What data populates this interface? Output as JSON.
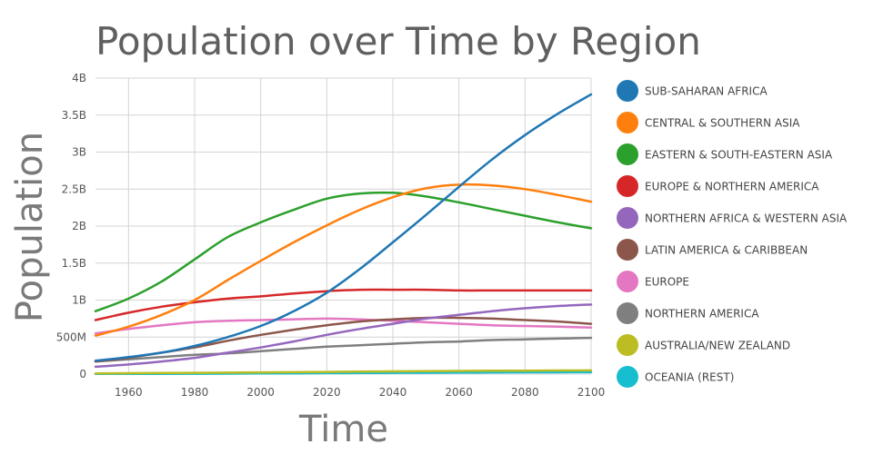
{
  "chart_data": {
    "type": "line",
    "title": "Population over Time by Region",
    "xlabel": "Time",
    "ylabel": "Population",
    "xlim": [
      1950,
      2100
    ],
    "ylim": [
      0,
      4000000000
    ],
    "grid": true,
    "legend_position": "right",
    "x_ticks": [
      {
        "value": 1960,
        "label": "1960"
      },
      {
        "value": 1980,
        "label": "1980"
      },
      {
        "value": 2000,
        "label": "2000"
      },
      {
        "value": 2020,
        "label": "2020"
      },
      {
        "value": 2040,
        "label": "2040"
      },
      {
        "value": 2060,
        "label": "2060"
      },
      {
        "value": 2080,
        "label": "2080"
      },
      {
        "value": 2100,
        "label": "2100"
      }
    ],
    "y_ticks": [
      {
        "value": 0,
        "label": "0"
      },
      {
        "value": 500000000,
        "label": "500M"
      },
      {
        "value": 1000000000,
        "label": "1B"
      },
      {
        "value": 1500000000,
        "label": "1.5B"
      },
      {
        "value": 2000000000,
        "label": "2B"
      },
      {
        "value": 2500000000,
        "label": "2.5B"
      },
      {
        "value": 3000000000,
        "label": "3B"
      },
      {
        "value": 3500000000,
        "label": "3.5B"
      },
      {
        "value": 4000000000,
        "label": "4B"
      }
    ],
    "x": [
      1950,
      1960,
      1970,
      1980,
      1990,
      2000,
      2010,
      2020,
      2030,
      2040,
      2050,
      2060,
      2070,
      2080,
      2090,
      2100
    ],
    "series": [
      {
        "name": "SUB-SAHARAN AFRICA",
        "color": "#1f77b4",
        "values": [
          180000000,
          230000000,
          290000000,
          380000000,
          500000000,
          650000000,
          850000000,
          1100000000,
          1420000000,
          1780000000,
          2150000000,
          2530000000,
          2900000000,
          3230000000,
          3520000000,
          3780000000
        ]
      },
      {
        "name": "CENTRAL & SOUTHERN ASIA",
        "color": "#ff7f0e",
        "values": [
          520000000,
          640000000,
          800000000,
          1000000000,
          1270000000,
          1530000000,
          1780000000,
          2010000000,
          2220000000,
          2390000000,
          2510000000,
          2560000000,
          2550000000,
          2500000000,
          2420000000,
          2330000000
        ]
      },
      {
        "name": "EASTERN & SOUTH-EASTERN ASIA",
        "color": "#2ca02c",
        "values": [
          850000000,
          1020000000,
          1250000000,
          1550000000,
          1850000000,
          2050000000,
          2220000000,
          2370000000,
          2440000000,
          2450000000,
          2400000000,
          2320000000,
          2230000000,
          2140000000,
          2050000000,
          1970000000
        ]
      },
      {
        "name": "EUROPE & NORTHERN AMERICA",
        "color": "#d62728",
        "values": [
          730000000,
          830000000,
          910000000,
          970000000,
          1020000000,
          1050000000,
          1090000000,
          1120000000,
          1140000000,
          1140000000,
          1140000000,
          1130000000,
          1130000000,
          1130000000,
          1130000000,
          1130000000
        ]
      },
      {
        "name": "NORTHERN AFRICA & WESTERN ASIA",
        "color": "#9467bd",
        "values": [
          100000000,
          130000000,
          170000000,
          220000000,
          290000000,
          360000000,
          440000000,
          530000000,
          610000000,
          680000000,
          750000000,
          800000000,
          850000000,
          890000000,
          920000000,
          940000000
        ]
      },
      {
        "name": "LATIN AMERICA & CARIBBEAN",
        "color": "#8c564b",
        "values": [
          170000000,
          220000000,
          290000000,
          360000000,
          450000000,
          530000000,
          600000000,
          660000000,
          710000000,
          740000000,
          760000000,
          760000000,
          750000000,
          730000000,
          710000000,
          680000000
        ]
      },
      {
        "name": "EUROPE",
        "color": "#e377c2",
        "values": [
          550000000,
          610000000,
          660000000,
          700000000,
          720000000,
          730000000,
          740000000,
          750000000,
          740000000,
          720000000,
          700000000,
          680000000,
          660000000,
          650000000,
          640000000,
          630000000
        ]
      },
      {
        "name": "NORTHERN AMERICA",
        "color": "#7f7f7f",
        "values": [
          170000000,
          200000000,
          230000000,
          260000000,
          280000000,
          310000000,
          340000000,
          370000000,
          390000000,
          410000000,
          430000000,
          440000000,
          460000000,
          470000000,
          480000000,
          490000000
        ]
      },
      {
        "name": "AUSTRALIA/NEW ZEALAND",
        "color": "#bcbd22",
        "values": [
          10000000,
          12000000,
          15000000,
          17000000,
          20000000,
          23000000,
          26000000,
          30000000,
          34000000,
          37000000,
          40000000,
          43000000,
          45000000,
          47000000,
          49000000,
          50000000
        ]
      },
      {
        "name": "OCEANIA (REST)",
        "color": "#17becf",
        "values": [
          2000000,
          3000000,
          4000000,
          5000000,
          6000000,
          8000000,
          10000000,
          13000000,
          15000000,
          17000000,
          19000000,
          21000000,
          23000000,
          24000000,
          25000000,
          26000000
        ]
      }
    ]
  }
}
